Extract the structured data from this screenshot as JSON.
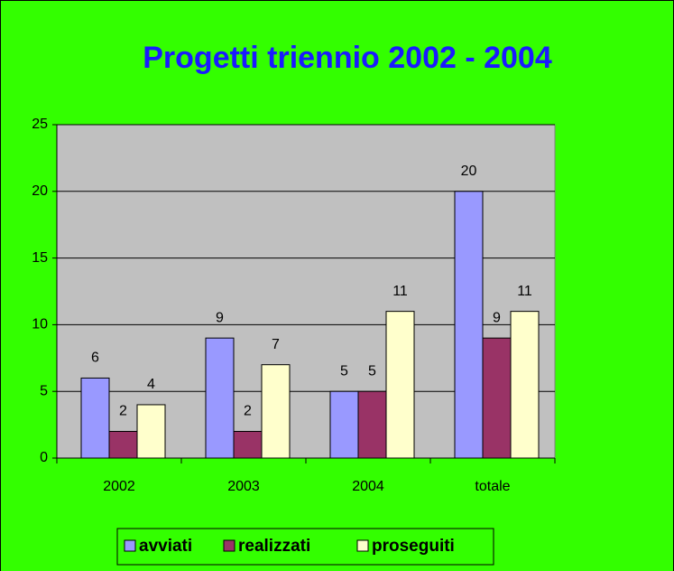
{
  "chart_data": {
    "type": "bar",
    "title": "Progetti triennio 2002 - 2004",
    "categories": [
      "2002",
      "2003",
      "2004",
      "totale"
    ],
    "series": [
      {
        "name": "avviati",
        "color": "#9999ff",
        "values": [
          6,
          9,
          5,
          20
        ]
      },
      {
        "name": "realizzati",
        "color": "#993366",
        "values": [
          2,
          2,
          5,
          9
        ]
      },
      {
        "name": "proseguiti",
        "color": "#ffffcc",
        "values": [
          4,
          7,
          11,
          11
        ]
      }
    ],
    "ylim": [
      0,
      25
    ],
    "yticks": [
      0,
      5,
      10,
      15,
      20,
      25
    ],
    "grid": true,
    "legend": "bottom"
  }
}
